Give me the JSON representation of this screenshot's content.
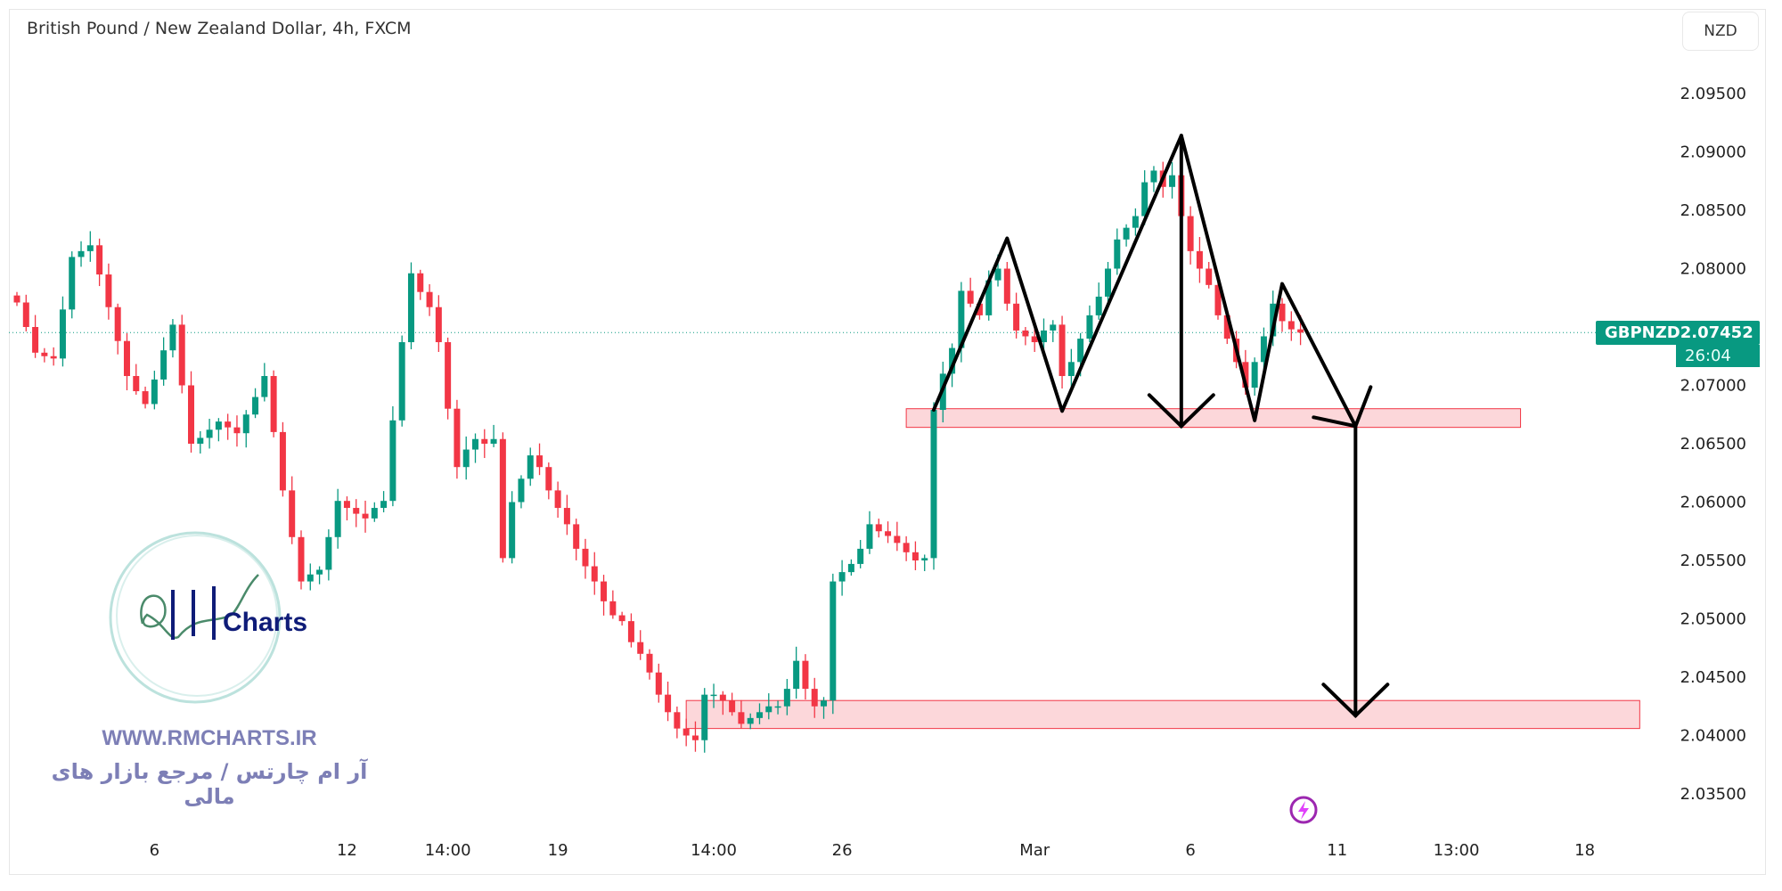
{
  "header": {
    "title": "British Pound / New Zealand Dollar, 4h, FXCM",
    "currency_button": "NZD"
  },
  "price_tag": {
    "symbol": "GBPNZD",
    "price": "2.07452",
    "countdown": "26:04"
  },
  "colors": {
    "up": "#089981",
    "down": "#f23645",
    "zone_fill": "#f23645",
    "annotation": "#000000",
    "watermark": "#7d7fb6"
  },
  "watermark": {
    "logo_text": "RM Charts",
    "url": "WWW.RMCHARTS.IR",
    "tagline": "آر ام چارتس / مرجع بازار های مالی"
  },
  "icons": {
    "lightning": "lightning-icon"
  },
  "chart_data": {
    "type": "candlestick",
    "title": "British Pound / New Zealand Dollar, 4h, FXCM",
    "ylim": [
      2.031,
      2.099
    ],
    "y_ticks": [
      "2.09500",
      "2.09000",
      "2.08500",
      "2.08000",
      "2.07500",
      "2.07000",
      "2.06500",
      "2.06000",
      "2.05500",
      "2.05000",
      "2.04500",
      "2.04000",
      "2.03500"
    ],
    "y_tick_values": [
      2.095,
      2.09,
      2.085,
      2.08,
      2.075,
      2.07,
      2.065,
      2.06,
      2.055,
      2.05,
      2.045,
      2.04,
      2.035
    ],
    "hidden_y_ticks": [
      "2.07500"
    ],
    "x_ticks": [
      {
        "label": "6",
        "index": 15
      },
      {
        "label": "12",
        "index": 36
      },
      {
        "label": "14:00",
        "index": 47
      },
      {
        "label": "19",
        "index": 59
      },
      {
        "label": "14:00",
        "index": 76
      },
      {
        "label": "26",
        "index": 90
      },
      {
        "label": "Mar",
        "index": 111
      },
      {
        "label": "6",
        "index": 128
      },
      {
        "label": "11",
        "index": 144
      },
      {
        "label": "13:00",
        "index": 157
      },
      {
        "label": "18",
        "index": 171
      }
    ],
    "last_price": 2.07452,
    "closes": [
      2.0771,
      2.075,
      2.0728,
      2.0725,
      2.0723,
      2.0765,
      2.081,
      2.0815,
      2.082,
      2.0795,
      2.0767,
      2.0738,
      2.0708,
      2.0695,
      2.0684,
      2.0705,
      2.073,
      2.0752,
      2.07,
      2.065,
      2.0655,
      2.0662,
      2.0669,
      2.0664,
      2.0659,
      2.0675,
      2.069,
      2.0708,
      2.066,
      2.061,
      2.057,
      2.0532,
      2.0538,
      2.0542,
      2.057,
      2.0601,
      2.0595,
      2.059,
      2.0586,
      2.0595,
      2.0601,
      2.067,
      2.0737,
      2.0796,
      2.078,
      2.0767,
      2.0737,
      2.068,
      2.063,
      2.0645,
      2.0654,
      2.065,
      2.0654,
      2.0552,
      2.06,
      2.062,
      2.064,
      2.063,
      2.061,
      2.0595,
      2.0581,
      2.056,
      2.0545,
      2.0532,
      2.0515,
      2.0503,
      2.0498,
      2.048,
      2.047,
      2.0454,
      2.0435,
      2.042,
      2.0406,
      2.04,
      2.0396,
      2.0435,
      2.0435,
      2.043,
      2.042,
      2.041,
      2.0415,
      2.042,
      2.0425,
      2.0425,
      2.044,
      2.0464,
      2.044,
      2.0425,
      2.043,
      2.0532,
      2.054,
      2.0547,
      2.056,
      2.0581,
      2.0575,
      2.0571,
      2.0565,
      2.0557,
      2.055,
      2.0552,
      2.0679,
      2.071,
      2.0732,
      2.0781,
      2.077,
      2.076,
      2.079,
      2.08,
      2.077,
      2.0747,
      2.0742,
      2.0737,
      2.0747,
      2.0752,
      2.0708,
      2.072,
      2.074,
      2.076,
      2.0776,
      2.08,
      2.0825,
      2.0835,
      2.0845,
      2.0874,
      2.0884,
      2.087,
      2.088,
      2.0845,
      2.0815,
      2.08,
      2.0786,
      2.076,
      2.074,
      2.072,
      2.0698,
      2.072,
      2.0742,
      2.077,
      2.0755,
      2.0748,
      2.07452
    ],
    "zones": [
      {
        "from_index": 97,
        "to_index": 164,
        "low": 2.0664,
        "high": 2.068
      },
      {
        "from_index": 73,
        "to_index": 177,
        "low": 2.0406,
        "high": 2.043
      }
    ],
    "pattern_lines": [
      {
        "points": [
          [
            100,
            2.0679
          ],
          [
            108,
            2.0826
          ],
          [
            114,
            2.0678
          ],
          [
            127,
            2.0914
          ],
          [
            135,
            2.067
          ],
          [
            138,
            2.0787
          ],
          [
            146,
            2.0665
          ]
        ]
      },
      {
        "arrow": true,
        "points": [
          [
            127,
            2.0914
          ],
          [
            127,
            2.0665
          ]
        ]
      },
      {
        "arrow": true,
        "points": [
          [
            146,
            2.0665
          ],
          [
            146,
            2.0417
          ]
        ]
      }
    ]
  }
}
